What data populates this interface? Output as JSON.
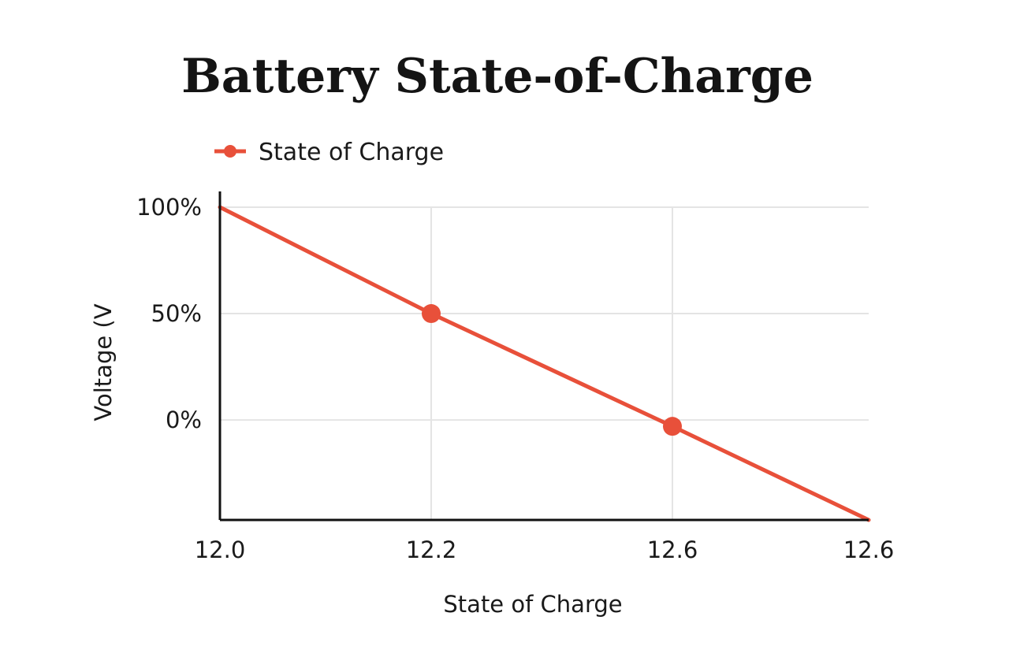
{
  "chart_data": {
    "type": "line",
    "title": "Battery State-of-Charge",
    "xlabel": "State of Charge",
    "ylabel": "Voltage (V",
    "x_tick_labels": [
      "12.0",
      "12.2",
      "12.6",
      "12.6"
    ],
    "y_tick_labels": [
      "100%",
      "50%",
      "0%"
    ],
    "y_tick_values": [
      100,
      50,
      0
    ],
    "ylim": [
      -47,
      100
    ],
    "grid": true,
    "legend_position": "top-left",
    "series": [
      {
        "name": "State of Charge",
        "color": "#e8503a",
        "x_index": [
          0,
          1,
          2,
          3
        ],
        "values": [
          100,
          50,
          -3,
          -47
        ],
        "markers": [
          false,
          true,
          true,
          false
        ]
      }
    ]
  }
}
